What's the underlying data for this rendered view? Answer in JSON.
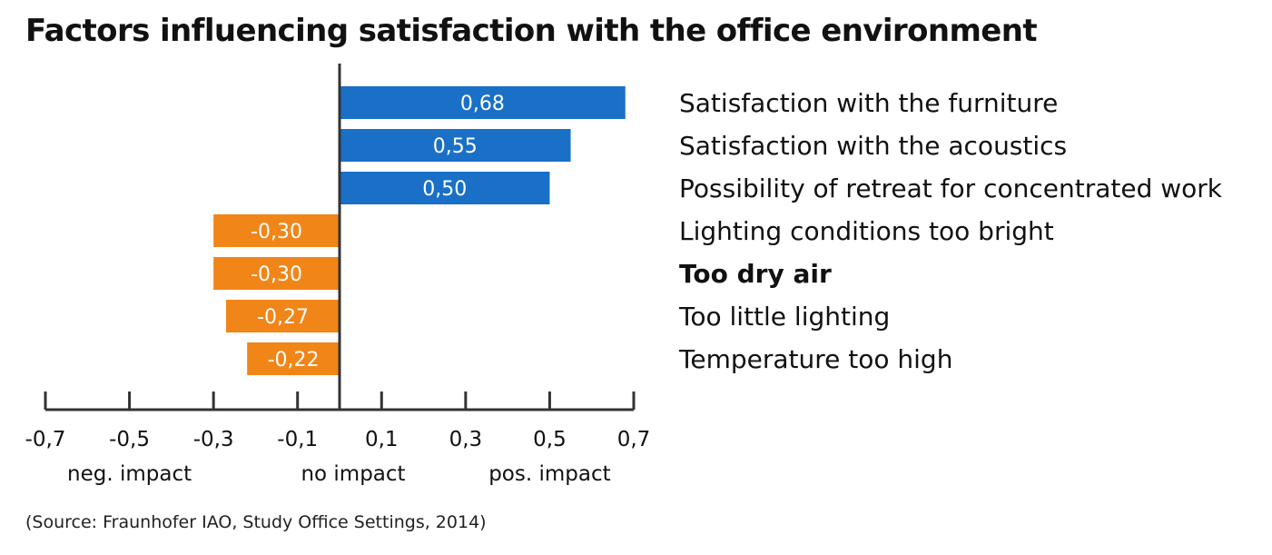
{
  "chart_data": {
    "type": "bar",
    "orientation": "horizontal",
    "title": "Factors influencing satisfaction with the office environment",
    "categories": [
      "Satisfaction with the furniture",
      "Satisfaction with the acoustics",
      "Possibility of retreat for concentrated work",
      "Lighting conditions too bright",
      "Too dry air",
      "Too little lighting",
      "Temperature too high"
    ],
    "values": [
      0.68,
      0.55,
      0.5,
      -0.3,
      -0.3,
      -0.27,
      -0.22
    ],
    "value_labels": [
      "0,68",
      "0,55",
      "0,50",
      "-0,30",
      "-0,30",
      "-0,27",
      "-0,22"
    ],
    "highlighted_category": "Too dry air",
    "xlim": [
      -0.7,
      0.7
    ],
    "x_ticks": [
      -0.7,
      -0.5,
      -0.3,
      -0.1,
      0.1,
      0.3,
      0.5,
      0.7
    ],
    "x_tick_labels": [
      "-0,7",
      "-0,5",
      "-0,3",
      "-0,1",
      "0,1",
      "0,3",
      "0,5",
      "0,7"
    ],
    "impact_labels": [
      {
        "text": "neg. impact",
        "x": -0.5
      },
      {
        "text": "no impact",
        "x": 0.0
      },
      {
        "text": "pos. impact",
        "x": 0.5
      }
    ],
    "colors": {
      "positive": "#1a70c7",
      "negative": "#f28518",
      "axis": "#333333"
    },
    "grid": false,
    "legend": "none"
  },
  "source": "(Source: Fraunhofer IAO, Study Office Settings, 2014)"
}
